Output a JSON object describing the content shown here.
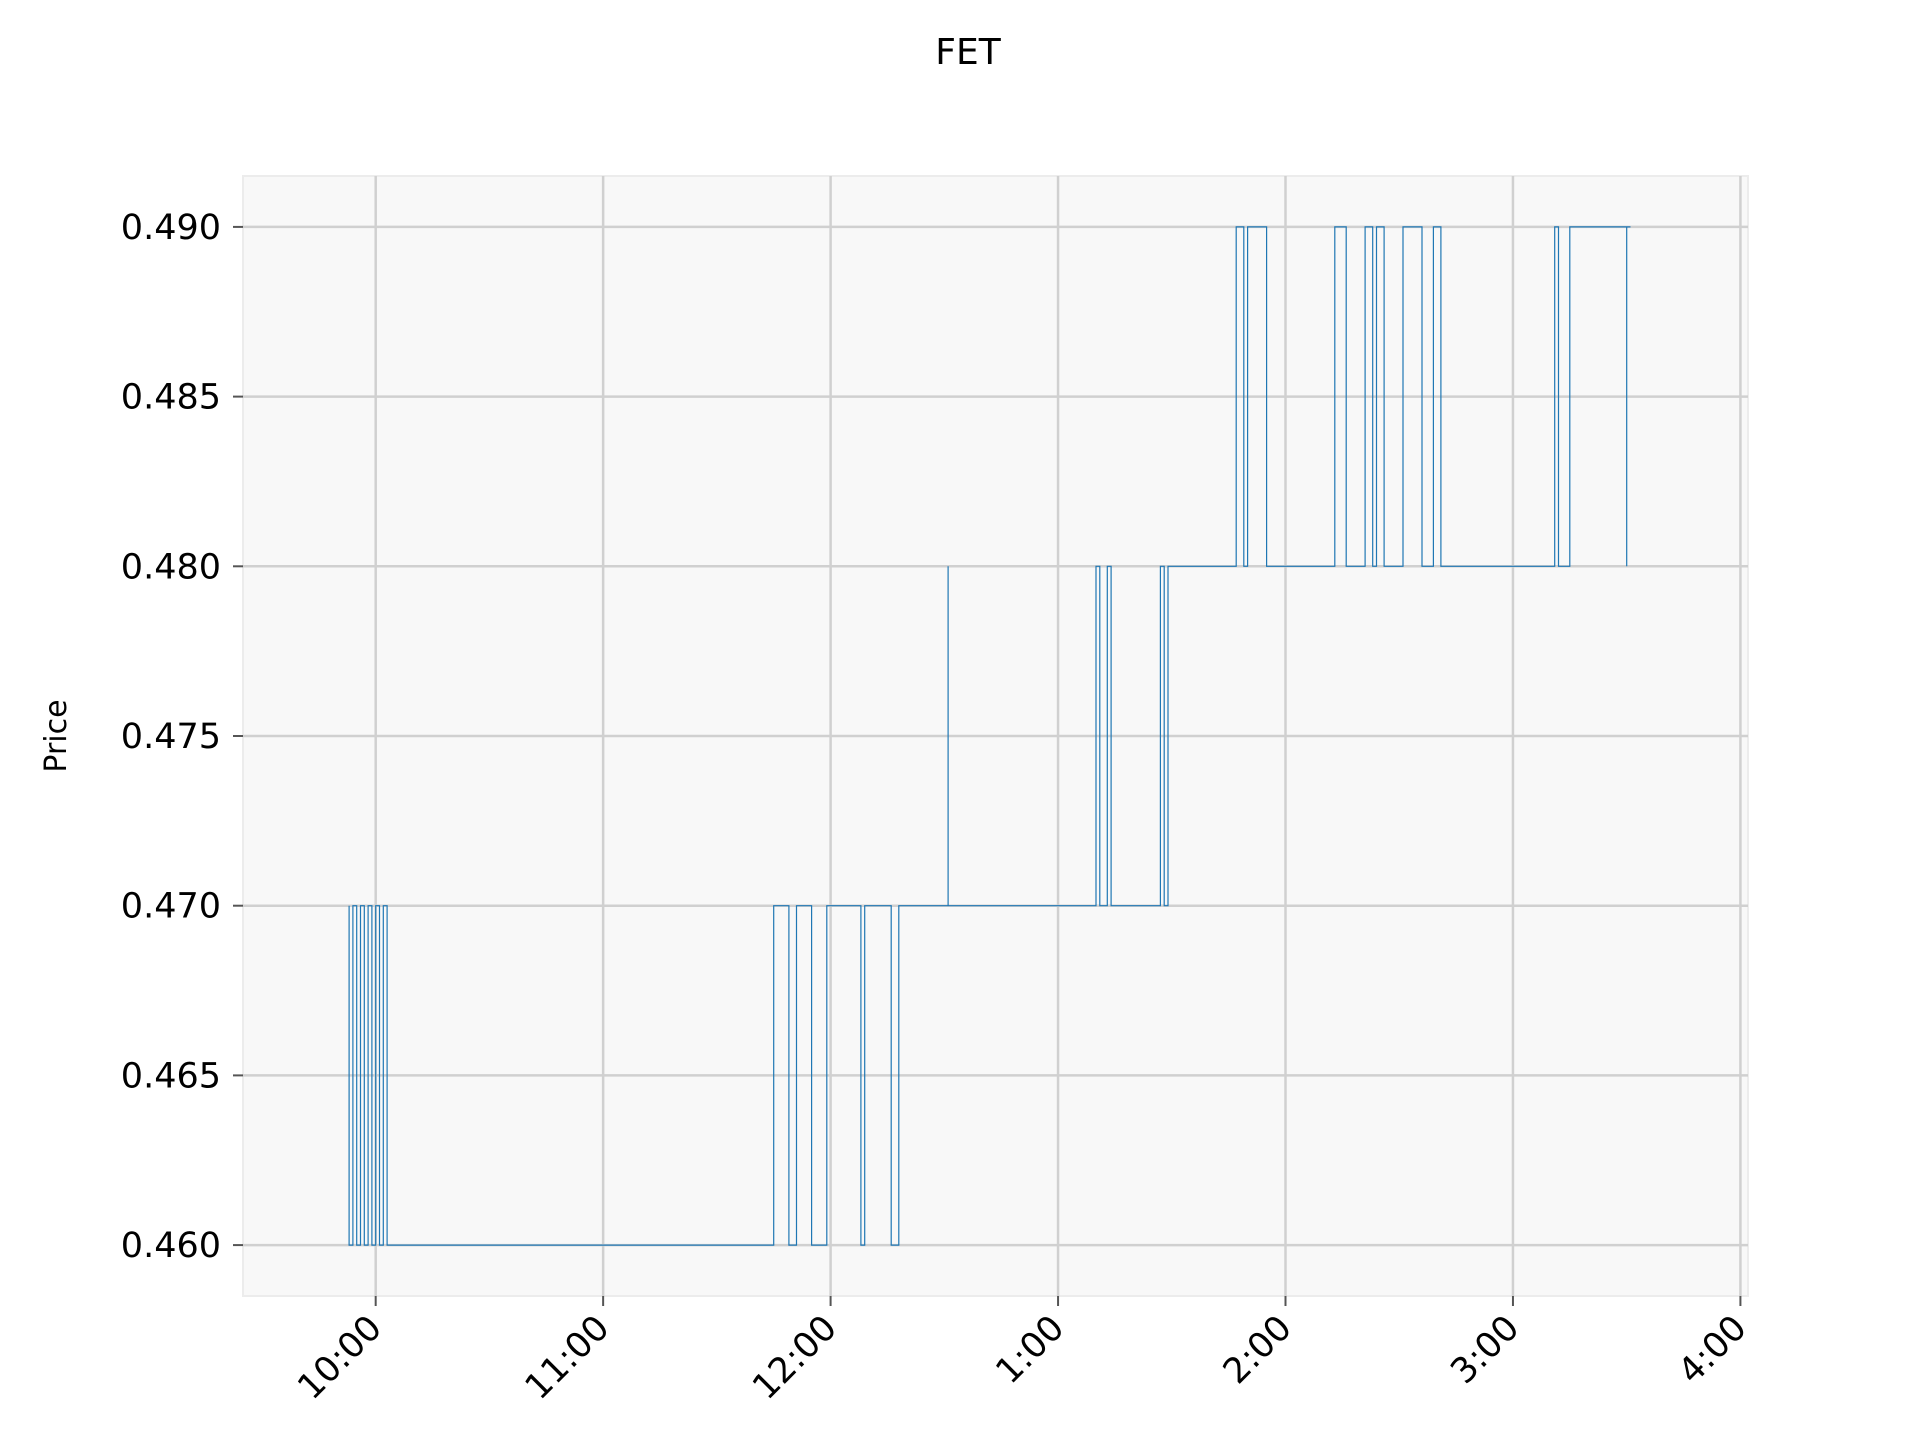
{
  "chart_data": {
    "type": "line",
    "title": "FET",
    "xlabel": "",
    "ylabel": "Price",
    "ylim": [
      0.4585,
      0.4915
    ],
    "xlim": [
      "9:25",
      "4:02"
    ],
    "grid": true,
    "legend": "none",
    "y_ticks": [
      {
        "value": 0.46,
        "label": "0.460"
      },
      {
        "value": 0.465,
        "label": "0.465"
      },
      {
        "value": 0.47,
        "label": "0.470"
      },
      {
        "value": 0.475,
        "label": "0.475"
      },
      {
        "value": 0.48,
        "label": "0.480"
      },
      {
        "value": 0.485,
        "label": "0.485"
      },
      {
        "value": 0.49,
        "label": "0.490"
      }
    ],
    "x_ticks": [
      {
        "value": "10:00",
        "label": "10:00"
      },
      {
        "value": "11:00",
        "label": "11:00"
      },
      {
        "value": "12:00",
        "label": "12:00"
      },
      {
        "value": "1:00",
        "label": "1:00"
      },
      {
        "value": "2:00",
        "label": "2:00"
      },
      {
        "value": "3:00",
        "label": "3:00"
      },
      {
        "value": "4:00",
        "label": "4:00"
      }
    ],
    "colors": {
      "series": "#1f77b4",
      "plot_background": "#f8f8f8",
      "grid": "#d0d0d0"
    },
    "series": [
      {
        "values": [
          [
            "9:53",
            0.47
          ],
          [
            "9:53",
            0.46
          ],
          [
            "9:54",
            0.46
          ],
          [
            "9:54",
            0.47
          ],
          [
            "9:55",
            0.47
          ],
          [
            "9:55",
            0.46
          ],
          [
            "9:56",
            0.46
          ],
          [
            "9:56",
            0.47
          ],
          [
            "9:57",
            0.47
          ],
          [
            "9:57",
            0.46
          ],
          [
            "9:58",
            0.46
          ],
          [
            "9:58",
            0.47
          ],
          [
            "9:59",
            0.47
          ],
          [
            "9:59",
            0.46
          ],
          [
            "10:00",
            0.46
          ],
          [
            "10:00",
            0.47
          ],
          [
            "10:01",
            0.47
          ],
          [
            "10:01",
            0.46
          ],
          [
            "10:02",
            0.46
          ],
          [
            "10:02",
            0.47
          ],
          [
            "10:03",
            0.47
          ],
          [
            "10:03",
            0.46
          ],
          [
            "11:45",
            0.46
          ],
          [
            "11:45",
            0.47
          ],
          [
            "11:49",
            0.47
          ],
          [
            "11:49",
            0.46
          ],
          [
            "11:51",
            0.46
          ],
          [
            "11:51",
            0.47
          ],
          [
            "11:55",
            0.47
          ],
          [
            "11:55",
            0.46
          ],
          [
            "11:59",
            0.46
          ],
          [
            "11:59",
            0.47
          ],
          [
            "12:08",
            0.47
          ],
          [
            "12:08",
            0.46
          ],
          [
            "12:09",
            0.46
          ],
          [
            "12:09",
            0.47
          ],
          [
            "12:16",
            0.47
          ],
          [
            "12:16",
            0.46
          ],
          [
            "12:18",
            0.46
          ],
          [
            "12:18",
            0.47
          ],
          [
            "12:31",
            0.47
          ],
          [
            "12:31",
            0.48
          ],
          [
            "12:31",
            0.48
          ],
          [
            "12:31",
            0.47
          ],
          [
            "1:10",
            0.47
          ],
          [
            "1:10",
            0.48
          ],
          [
            "1:11",
            0.48
          ],
          [
            "1:11",
            0.47
          ],
          [
            "1:13",
            0.47
          ],
          [
            "1:13",
            0.48
          ],
          [
            "1:14",
            0.48
          ],
          [
            "1:14",
            0.47
          ],
          [
            "1:27",
            0.47
          ],
          [
            "1:27",
            0.48
          ],
          [
            "1:28",
            0.48
          ],
          [
            "1:28",
            0.47
          ],
          [
            "1:29",
            0.47
          ],
          [
            "1:29",
            0.48
          ],
          [
            "1:47",
            0.48
          ],
          [
            "1:47",
            0.49
          ],
          [
            "1:49",
            0.49
          ],
          [
            "1:49",
            0.48
          ],
          [
            "1:50",
            0.48
          ],
          [
            "1:50",
            0.49
          ],
          [
            "1:55",
            0.49
          ],
          [
            "1:55",
            0.48
          ],
          [
            "2:13",
            0.48
          ],
          [
            "2:13",
            0.49
          ],
          [
            "2:16",
            0.49
          ],
          [
            "2:16",
            0.48
          ],
          [
            "2:21",
            0.48
          ],
          [
            "2:21",
            0.49
          ],
          [
            "2:23",
            0.49
          ],
          [
            "2:23",
            0.48
          ],
          [
            "2:24",
            0.48
          ],
          [
            "2:24",
            0.49
          ],
          [
            "2:26",
            0.49
          ],
          [
            "2:26",
            0.48
          ],
          [
            "2:31",
            0.48
          ],
          [
            "2:31",
            0.49
          ],
          [
            "2:36",
            0.49
          ],
          [
            "2:36",
            0.48
          ],
          [
            "2:39",
            0.48
          ],
          [
            "2:39",
            0.49
          ],
          [
            "2:41",
            0.49
          ],
          [
            "2:41",
            0.48
          ],
          [
            "3:11",
            0.48
          ],
          [
            "3:11",
            0.49
          ],
          [
            "3:12",
            0.49
          ],
          [
            "3:12",
            0.48
          ],
          [
            "3:15",
            0.48
          ],
          [
            "3:15",
            0.49
          ],
          [
            "3:30",
            0.49
          ],
          [
            "3:30",
            0.48
          ],
          [
            "3:30",
            0.48
          ],
          [
            "3:30",
            0.49
          ],
          [
            "3:31",
            0.49
          ]
        ]
      }
    ]
  }
}
